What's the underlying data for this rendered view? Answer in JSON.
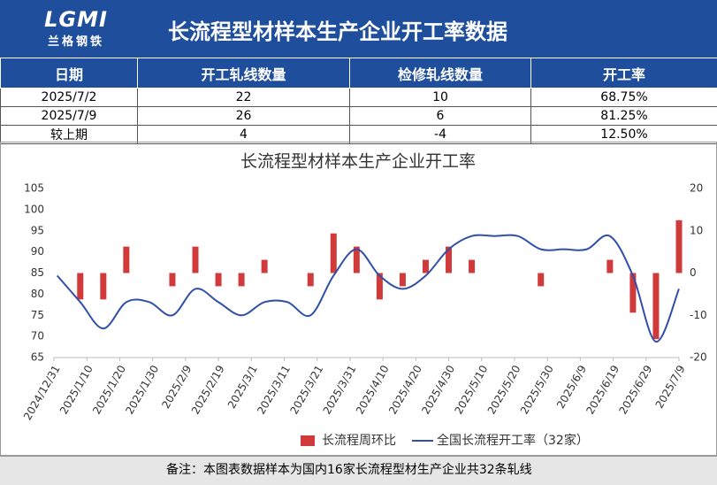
{
  "header": {
    "logo_text": "LGMI",
    "logo_sub": "兰格钢铁",
    "title": "长流程型材样本生产企业开工率数据"
  },
  "table": {
    "columns": [
      "日期",
      "开工轧线数量",
      "检修轧线数量",
      "开工率"
    ],
    "rows": [
      [
        "2025/7/2",
        "22",
        "10",
        "68.75%"
      ],
      [
        "2025/7/9",
        "26",
        "6",
        "81.25%"
      ],
      [
        "较上期",
        "4",
        "-4",
        "12.50%"
      ]
    ]
  },
  "chart_data": {
    "type": "combo",
    "title": "长流程型材样本生产企业开工率",
    "x": [
      "2025/1/1",
      "2025/1/8",
      "2025/1/15",
      "2025/1/22",
      "2025/1/29",
      "2025/2/5",
      "2025/2/12",
      "2025/2/19",
      "2025/2/26",
      "2025/3/5",
      "2025/3/12",
      "2025/3/19",
      "2025/3/26",
      "2025/4/2",
      "2025/4/9",
      "2025/4/16",
      "2025/4/23",
      "2025/4/30",
      "2025/5/7",
      "2025/5/14",
      "2025/5/21",
      "2025/5/28",
      "2025/6/4",
      "2025/6/11",
      "2025/6/18",
      "2025/6/25",
      "2025/7/2",
      "2025/7/9"
    ],
    "series": [
      {
        "name": "长流程周环比",
        "type": "bar",
        "axis": "y2",
        "color": "#d03a3a",
        "values": [
          null,
          -6.25,
          -6.25,
          6.25,
          0,
          -3.125,
          6.25,
          -3.125,
          -3.125,
          3.125,
          0,
          -3.125,
          9.375,
          6.25,
          -6.25,
          -3.125,
          3.125,
          6.25,
          3.125,
          0,
          0,
          -3.125,
          0,
          0,
          3.125,
          -9.375,
          -15.625,
          12.5
        ]
      },
      {
        "name": "全国长流程开工率（32家）",
        "type": "line",
        "axis": "y",
        "color": "#2f4fa8",
        "values": [
          84.375,
          78.125,
          71.875,
          78.125,
          78.125,
          75,
          81.25,
          78.125,
          75,
          78.125,
          78.125,
          75,
          84.375,
          90.625,
          84.375,
          81.25,
          84.375,
          90.625,
          93.75,
          93.75,
          93.75,
          90.625,
          90.625,
          90.625,
          93.75,
          84.375,
          68.75,
          81.25
        ]
      }
    ],
    "xlim": [
      "2024/12/31",
      "2025/7/9"
    ],
    "xticks": [
      "2024/12/31",
      "2025/1/10",
      "2025/1/20",
      "2025/1/30",
      "2025/2/9",
      "2025/2/19",
      "2025/3/1",
      "2025/3/11",
      "2025/3/21",
      "2025/3/31",
      "2025/4/10",
      "2025/4/20",
      "2025/4/30",
      "2025/5/10",
      "2025/5/20",
      "2025/5/30",
      "2025/6/9",
      "2025/6/19",
      "2025/6/29",
      "2025/7/9"
    ],
    "ylim": [
      65,
      105
    ],
    "yticks": [
      65,
      70,
      75,
      80,
      85,
      90,
      95,
      100,
      105
    ],
    "y2lim": [
      -20,
      20
    ],
    "y2ticks": [
      -20,
      -10,
      0,
      10,
      20
    ],
    "grid": false,
    "legend": "bottom"
  },
  "footer": {
    "note": "备注：本图表数据样本为国内16家长流程型材生产企业共32条轧线"
  }
}
